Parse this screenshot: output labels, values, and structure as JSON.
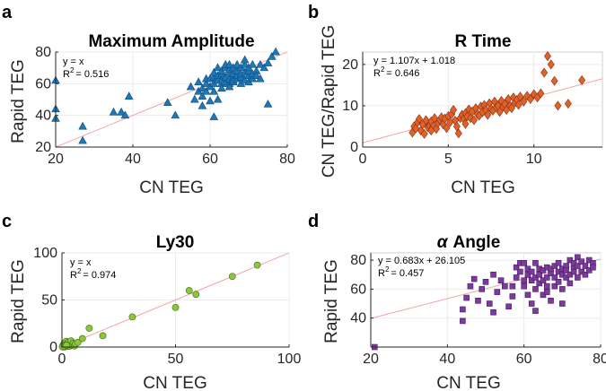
{
  "chart_data": [
    {
      "panel": "a",
      "type": "scatter",
      "title": "Maximum Amplitude",
      "title_italic_prefix": "",
      "xlabel": "CN TEG",
      "ylabel": "Rapid TEG",
      "xlim": [
        20,
        80
      ],
      "ylim": [
        20,
        80
      ],
      "xticks": [
        20,
        40,
        60,
        80
      ],
      "yticks": [
        20,
        40,
        60,
        80
      ],
      "marker": "triangle",
      "color": "#1f77b4",
      "stroke": "#0d4a80",
      "fit_line": {
        "slope": 1,
        "intercept": 0,
        "color": "#f2a4a4"
      },
      "annotation": {
        "equation": "y = x",
        "r2_label": "R",
        "r2_value": "= 0.516"
      },
      "points": [
        [
          20,
          62
        ],
        [
          20,
          44
        ],
        [
          20,
          38
        ],
        [
          27,
          33
        ],
        [
          27,
          24
        ],
        [
          35,
          42
        ],
        [
          37,
          42
        ],
        [
          38,
          40
        ],
        [
          39,
          52
        ],
        [
          49,
          48
        ],
        [
          51,
          40
        ],
        [
          55,
          58
        ],
        [
          56,
          50
        ],
        [
          57,
          61
        ],
        [
          57,
          55
        ],
        [
          58,
          57
        ],
        [
          58,
          46
        ],
        [
          59,
          60
        ],
        [
          59,
          63
        ],
        [
          59,
          55
        ],
        [
          60,
          63
        ],
        [
          60,
          58
        ],
        [
          61,
          64
        ],
        [
          61,
          60
        ],
        [
          61,
          67
        ],
        [
          61,
          39
        ],
        [
          62,
          62
        ],
        [
          62,
          65
        ],
        [
          62,
          70
        ],
        [
          62,
          50
        ],
        [
          63,
          60
        ],
        [
          63,
          62
        ],
        [
          63,
          66
        ],
        [
          63,
          68
        ],
        [
          64,
          61
        ],
        [
          64,
          64
        ],
        [
          64,
          70
        ],
        [
          64,
          72
        ],
        [
          65,
          60
        ],
        [
          65,
          63
        ],
        [
          65,
          67
        ],
        [
          65,
          69
        ],
        [
          65,
          58
        ],
        [
          65,
          72
        ],
        [
          66,
          61
        ],
        [
          66,
          64
        ],
        [
          66,
          66
        ],
        [
          66,
          70
        ],
        [
          66,
          62
        ],
        [
          67,
          63
        ],
        [
          67,
          65
        ],
        [
          67,
          68
        ],
        [
          67,
          72
        ],
        [
          68,
          60
        ],
        [
          68,
          64
        ],
        [
          68,
          66
        ],
        [
          68,
          70
        ],
        [
          69,
          62
        ],
        [
          69,
          67
        ],
        [
          69,
          72
        ],
        [
          69,
          75
        ],
        [
          70,
          61
        ],
        [
          70,
          65
        ],
        [
          70,
          68
        ],
        [
          70,
          70
        ],
        [
          71,
          63
        ],
        [
          71,
          66
        ],
        [
          71,
          72
        ],
        [
          72,
          68
        ],
        [
          72,
          65
        ],
        [
          73,
          72
        ],
        [
          73,
          63
        ],
        [
          74,
          70
        ],
        [
          75,
          73
        ],
        [
          76,
          77
        ],
        [
          77,
          80
        ],
        [
          75,
          47
        ],
        [
          61,
          55
        ],
        [
          60,
          49
        ],
        [
          63,
          57
        ],
        [
          58,
          52
        ]
      ]
    },
    {
      "panel": "b",
      "type": "scatter",
      "title": "R Time",
      "title_italic_prefix": "",
      "xlabel": "CN TEG",
      "ylabel": "CN TEG/Rapid TEG",
      "xlim": [
        0,
        14
      ],
      "ylim": [
        0,
        23
      ],
      "xticks": [
        0,
        5,
        10
      ],
      "yticks": [
        0,
        10,
        20
      ],
      "marker": "diamond",
      "color": "#e0622a",
      "stroke": "#8a3010",
      "fit_line": {
        "slope": 1.107,
        "intercept": 1.018,
        "color": "#f2a4a4"
      },
      "annotation": {
        "equation": "y = 1.107x + 1.018",
        "r2_label": "R",
        "r2_value": "= 0.646"
      },
      "points": [
        [
          2.9,
          3.5
        ],
        [
          3.0,
          5.0
        ],
        [
          3.1,
          4.5
        ],
        [
          3.2,
          6.0
        ],
        [
          3.4,
          4.0
        ],
        [
          3.5,
          5.5
        ],
        [
          3.6,
          3.2
        ],
        [
          3.7,
          6.5
        ],
        [
          3.8,
          4.8
        ],
        [
          3.9,
          5.2
        ],
        [
          4.0,
          6.2
        ],
        [
          4.1,
          5.0
        ],
        [
          4.2,
          7.0
        ],
        [
          4.3,
          4.4
        ],
        [
          4.4,
          5.8
        ],
        [
          4.5,
          6.6
        ],
        [
          4.6,
          7.2
        ],
        [
          4.7,
          5.5
        ],
        [
          4.8,
          6.9
        ],
        [
          4.9,
          4.6
        ],
        [
          5.0,
          7.5
        ],
        [
          5.1,
          6.0
        ],
        [
          5.2,
          8.0
        ],
        [
          5.3,
          9.0
        ],
        [
          5.4,
          6.4
        ],
        [
          5.5,
          5.0
        ],
        [
          5.6,
          3.3
        ],
        [
          5.7,
          7.0
        ],
        [
          5.8,
          7.8
        ],
        [
          5.9,
          6.8
        ],
        [
          6.0,
          8.2
        ],
        [
          6.1,
          7.4
        ],
        [
          6.2,
          9.1
        ],
        [
          6.3,
          7.0
        ],
        [
          6.4,
          8.6
        ],
        [
          6.5,
          6.5
        ],
        [
          6.6,
          9.4
        ],
        [
          6.7,
          8.0
        ],
        [
          6.8,
          7.6
        ],
        [
          6.9,
          9.8
        ],
        [
          7.0,
          8.4
        ],
        [
          7.1,
          10.2
        ],
        [
          7.2,
          9.0
        ],
        [
          7.3,
          7.8
        ],
        [
          7.4,
          10.6
        ],
        [
          7.5,
          9.2
        ],
        [
          7.6,
          8.8
        ],
        [
          7.7,
          11.0
        ],
        [
          7.8,
          9.6
        ],
        [
          7.9,
          10.0
        ],
        [
          8.0,
          8.5
        ],
        [
          8.1,
          11.2
        ],
        [
          8.2,
          9.8
        ],
        [
          8.3,
          10.4
        ],
        [
          8.4,
          9.0
        ],
        [
          8.5,
          11.6
        ],
        [
          8.6,
          10.0
        ],
        [
          8.7,
          9.4
        ],
        [
          8.8,
          12.0
        ],
        [
          8.9,
          10.8
        ],
        [
          9.0,
          11.4
        ],
        [
          9.1,
          10.2
        ],
        [
          9.2,
          12.2
        ],
        [
          9.4,
          11.0
        ],
        [
          9.6,
          12.4
        ],
        [
          9.8,
          11.6
        ],
        [
          10.0,
          12.8
        ],
        [
          10.2,
          12.0
        ],
        [
          10.4,
          13.0
        ],
        [
          10.6,
          18.0
        ],
        [
          10.8,
          22.0
        ],
        [
          11.0,
          20.0
        ],
        [
          11.2,
          16.0
        ],
        [
          11.4,
          10.0
        ],
        [
          12.0,
          10.5
        ],
        [
          12.8,
          16.2
        ],
        [
          3.3,
          6.8
        ],
        [
          4.0,
          4.0
        ],
        [
          6.0,
          5.6
        ]
      ]
    },
    {
      "panel": "c",
      "type": "scatter",
      "title": "Ly30",
      "title_italic_prefix": "",
      "xlabel": "CN TEG",
      "ylabel": "Rapid TEG",
      "xlim": [
        0,
        100
      ],
      "ylim": [
        0,
        100
      ],
      "xticks": [
        0,
        50,
        100
      ],
      "yticks": [
        0,
        50,
        100
      ],
      "marker": "circle",
      "color": "#8cc63f",
      "stroke": "#3e6b10",
      "fit_line": {
        "slope": 1,
        "intercept": 0,
        "color": "#f2a4a4"
      },
      "annotation": {
        "equation": "y = x",
        "r2_label": "R",
        "r2_value": "= 0.974"
      },
      "points": [
        [
          0.3,
          0.5
        ],
        [
          0.5,
          2.0
        ],
        [
          0.8,
          1.0
        ],
        [
          1.0,
          4.0
        ],
        [
          1.2,
          0.3
        ],
        [
          1.5,
          2.5
        ],
        [
          1.8,
          6.0
        ],
        [
          2.0,
          1.5
        ],
        [
          2.2,
          3.5
        ],
        [
          2.5,
          0.8
        ],
        [
          2.8,
          5.0
        ],
        [
          3.0,
          2.2
        ],
        [
          3.3,
          1.0
        ],
        [
          3.6,
          3.0
        ],
        [
          4.0,
          6.5
        ],
        [
          4.3,
          2.0
        ],
        [
          5.0,
          4.0
        ],
        [
          5.5,
          1.2
        ],
        [
          6.0,
          3.5
        ],
        [
          7.0,
          5.0
        ],
        [
          9.0,
          9.0
        ],
        [
          12.0,
          20.0
        ],
        [
          18.0,
          12.0
        ],
        [
          31.0,
          32.0
        ],
        [
          50.0,
          42.0
        ],
        [
          56.0,
          60.0
        ],
        [
          59.0,
          56.0
        ],
        [
          75.0,
          75.0
        ],
        [
          86.0,
          87.0
        ],
        [
          0.2,
          0.2
        ],
        [
          1.0,
          1.0
        ],
        [
          2.0,
          2.0
        ]
      ]
    },
    {
      "panel": "d",
      "type": "scatter",
      "title": "Angle",
      "title_italic_prefix": "α",
      "xlabel": "CN TEG",
      "ylabel": "Rapid TEG",
      "xlim": [
        20,
        80
      ],
      "ylim": [
        20,
        85
      ],
      "xticks": [
        20,
        40,
        60,
        80
      ],
      "yticks": [
        40,
        60,
        80
      ],
      "marker": "square",
      "color": "#7a3b9c",
      "stroke": "#4a1a66",
      "fit_line": {
        "slope": 0.683,
        "intercept": 26.105,
        "color": "#f2a4a4"
      },
      "annotation": {
        "equation": "y = 0.683x + 26.105",
        "r2_label": "R",
        "r2_value": "= 0.457"
      },
      "points": [
        [
          21,
          20
        ],
        [
          44,
          38
        ],
        [
          44,
          46
        ],
        [
          45,
          54
        ],
        [
          46,
          62
        ],
        [
          47,
          67
        ],
        [
          48,
          52
        ],
        [
          49,
          60
        ],
        [
          50,
          65
        ],
        [
          51,
          50
        ],
        [
          52,
          70
        ],
        [
          52,
          44
        ],
        [
          53,
          58
        ],
        [
          54,
          66
        ],
        [
          55,
          62
        ],
        [
          56,
          48
        ],
        [
          57,
          62
        ],
        [
          58,
          75
        ],
        [
          58,
          68
        ],
        [
          59,
          72
        ],
        [
          59,
          78
        ],
        [
          60,
          78
        ],
        [
          60,
          66
        ],
        [
          60,
          62
        ],
        [
          61,
          70
        ],
        [
          61,
          74
        ],
        [
          61,
          56
        ],
        [
          62,
          66
        ],
        [
          62,
          72
        ],
        [
          62,
          50
        ],
        [
          63,
          78
        ],
        [
          63,
          68
        ],
        [
          63,
          60
        ],
        [
          64,
          74
        ],
        [
          64,
          64
        ],
        [
          64,
          70
        ],
        [
          65,
          66
        ],
        [
          65,
          73
        ],
        [
          65,
          56
        ],
        [
          66,
          75
        ],
        [
          66,
          62
        ],
        [
          66,
          68
        ],
        [
          67,
          71
        ],
        [
          67,
          74
        ],
        [
          67,
          52
        ],
        [
          68,
          68
        ],
        [
          68,
          76
        ],
        [
          68,
          62
        ],
        [
          69,
          72
        ],
        [
          69,
          65
        ],
        [
          69,
          78
        ],
        [
          70,
          70
        ],
        [
          70,
          74
        ],
        [
          70,
          60
        ],
        [
          71,
          76
        ],
        [
          71,
          68
        ],
        [
          71,
          73
        ],
        [
          72,
          80
        ],
        [
          72,
          70
        ],
        [
          72,
          64
        ],
        [
          73,
          75
        ],
        [
          73,
          78
        ],
        [
          73,
          72
        ],
        [
          74,
          68
        ],
        [
          74,
          76
        ],
        [
          74,
          82
        ],
        [
          75,
          72
        ],
        [
          75,
          79
        ],
        [
          76,
          70
        ],
        [
          76,
          76
        ],
        [
          77,
          80
        ],
        [
          77,
          73
        ],
        [
          78,
          78
        ],
        [
          78,
          75
        ],
        [
          70,
          50
        ],
        [
          66,
          58
        ],
        [
          57,
          55
        ],
        [
          63,
          45
        ]
      ]
    }
  ]
}
